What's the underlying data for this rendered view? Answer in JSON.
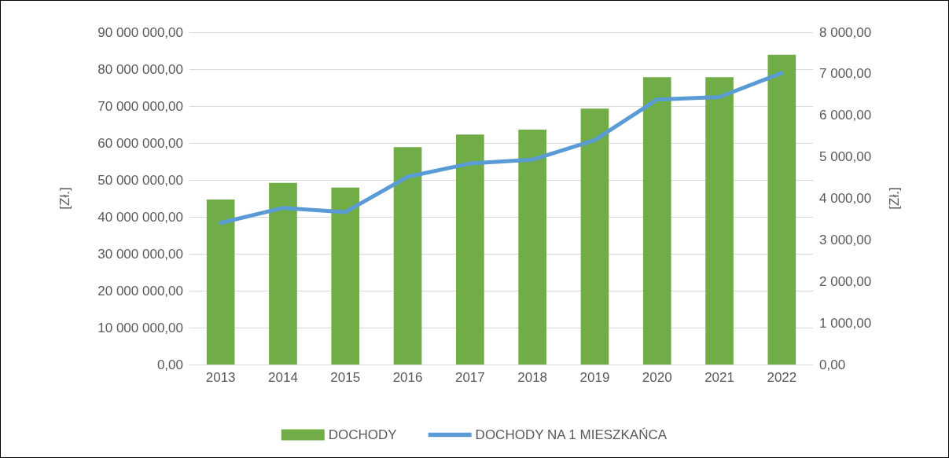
{
  "chart_data": {
    "type": "bar",
    "categories": [
      "2013",
      "2014",
      "2015",
      "2016",
      "2017",
      "2018",
      "2019",
      "2020",
      "2021",
      "2022"
    ],
    "series": [
      {
        "name": "DOCHODY",
        "color": "#70ad47",
        "values": [
          44700000,
          49200000,
          47900000,
          58900000,
          62300000,
          63600000,
          69300000,
          77800000,
          77800000,
          83900000
        ]
      },
      {
        "name": "DOCHODY NA 1 MIESZKAŃCA",
        "type": "line",
        "axis": "y2",
        "color": "#5b9bd5",
        "values": [
          3410,
          3770,
          3670,
          4520,
          4840,
          4930,
          5400,
          6380,
          6440,
          7020
        ]
      }
    ],
    "ylabel": "[Zł.]",
    "y2label": "[Zł.]",
    "ylim": [
      0,
      90000000
    ],
    "yticks": [
      {
        "value": 0,
        "label": "0,00"
      },
      {
        "value": 10000000,
        "label": "10 000 000,00"
      },
      {
        "value": 20000000,
        "label": "20 000 000,00"
      },
      {
        "value": 30000000,
        "label": "30 000 000,00"
      },
      {
        "value": 40000000,
        "label": "40 000 000,00"
      },
      {
        "value": 50000000,
        "label": "50 000 000,00"
      },
      {
        "value": 60000000,
        "label": "60 000 000,00"
      },
      {
        "value": 70000000,
        "label": "70 000 000,00"
      },
      {
        "value": 80000000,
        "label": "80 000 000,00"
      },
      {
        "value": 90000000,
        "label": "90 000 000,00"
      }
    ],
    "y2lim": [
      0,
      8000
    ],
    "y2ticks": [
      {
        "value": 0,
        "label": "0,00"
      },
      {
        "value": 1000,
        "label": "1 000,00"
      },
      {
        "value": 2000,
        "label": "2 000,00"
      },
      {
        "value": 3000,
        "label": "3 000,00"
      },
      {
        "value": 4000,
        "label": "4 000,00"
      },
      {
        "value": 5000,
        "label": "5 000,00"
      },
      {
        "value": 6000,
        "label": "6 000,00"
      },
      {
        "value": 7000,
        "label": "7 000,00"
      },
      {
        "value": 8000,
        "label": "8 000,00"
      }
    ],
    "grid": "y",
    "legend": "bottom",
    "marker": "none",
    "line_style": "solid"
  }
}
